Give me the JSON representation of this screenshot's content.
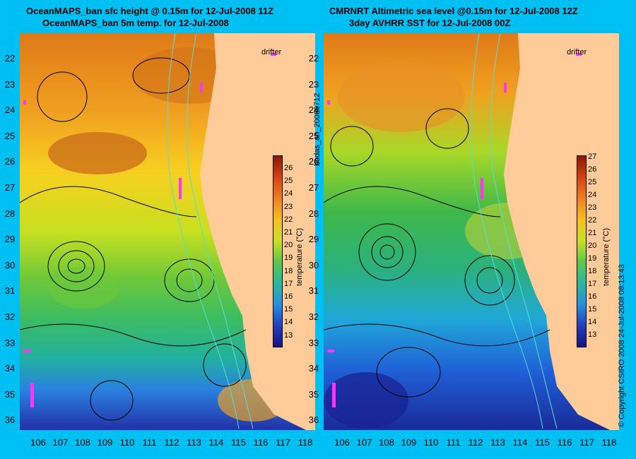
{
  "titles": {
    "left_line1": "OceanMAPS_ban sfc height @ 0.15m for 12-Jul-2008 11Z",
    "left_line2": "OceanMAPS_ban 5m temp. for 12-Jul-2008",
    "right_line1": "CMRNRT Altimetric sea level  @0.15m  for 12-Jul-2008 12Z",
    "right_line2": "3day AVHRR SST for 12-Jul-2008 00Z"
  },
  "lat_labels": [
    "22",
    "23",
    "24",
    "25",
    "26",
    "27",
    "28",
    "29",
    "30",
    "31",
    "32",
    "33",
    "34",
    "35",
    "36"
  ],
  "lon_labels": [
    "106",
    "107",
    "108",
    "109",
    "110",
    "111",
    "112",
    "113",
    "114",
    "115",
    "116",
    "117",
    "118"
  ],
  "colorbar_left": {
    "ticks": [
      "26",
      "25",
      "24",
      "23",
      "22",
      "21",
      "20",
      "19",
      "18",
      "17",
      "16",
      "15",
      "14",
      "13"
    ],
    "label": "temperature (°C)"
  },
  "colorbar_right": {
    "ticks": [
      "27",
      "26",
      "25",
      "24",
      "23",
      "22",
      "21",
      "20",
      "19",
      "18",
      "17",
      "16",
      "15",
      "14",
      "13"
    ],
    "label": "temperature (°C)"
  },
  "drifter_label": "drifter",
  "side_label": "bodas_an_20080712",
  "copyright": "© Copyright CSIRO 2008   24-Jul-2008 08:13:43",
  "colors": {
    "background": "#00bff2",
    "land": "#ffcc99",
    "drifter": "#ff33ff",
    "contour": "#000000",
    "bathymetry": "#55dddd"
  }
}
